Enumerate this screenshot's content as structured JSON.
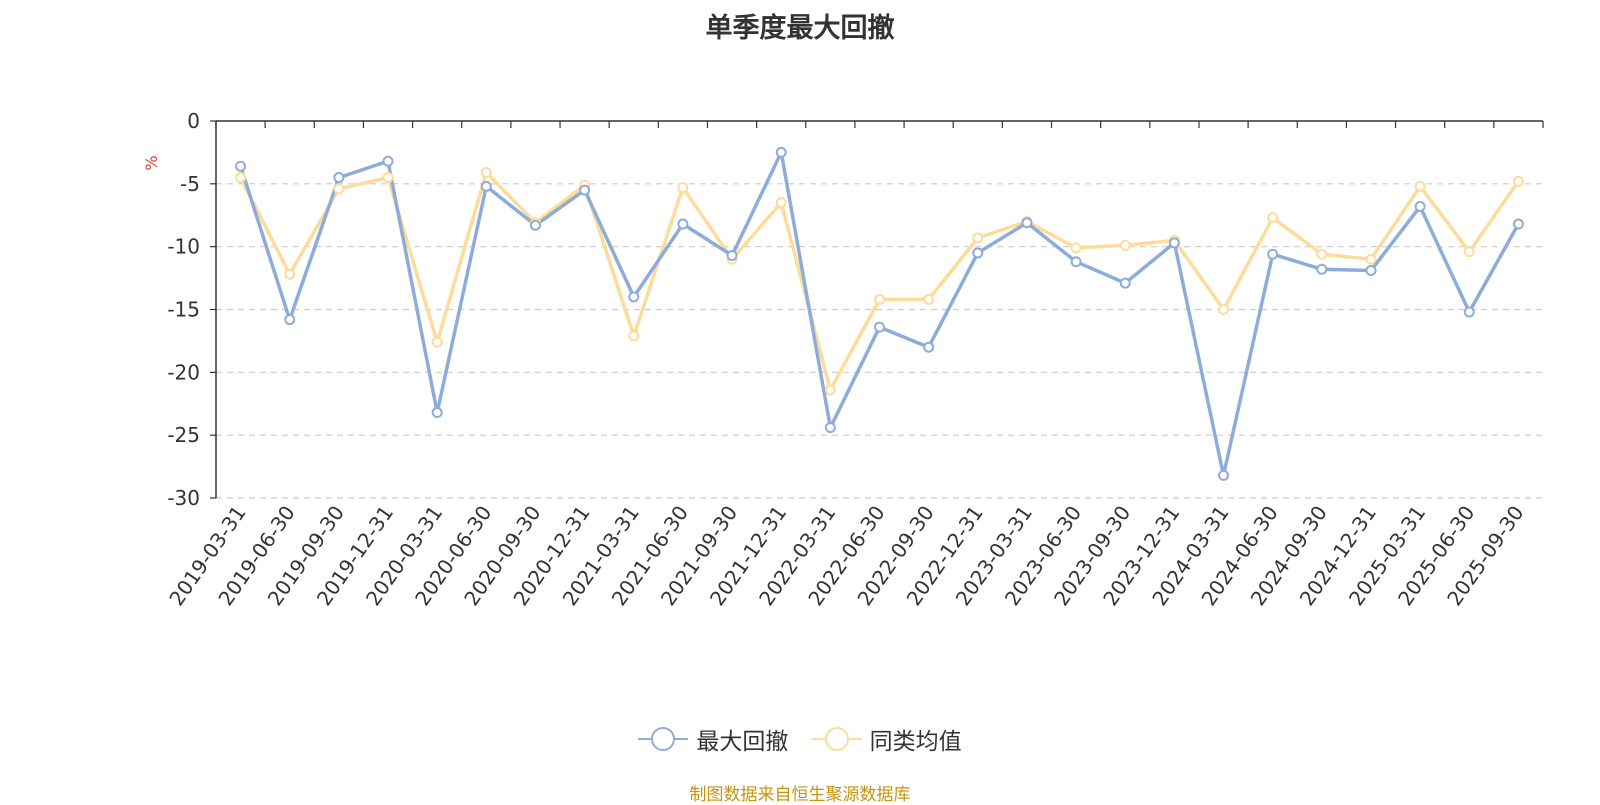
{
  "chart_data": {
    "type": "line",
    "title": "单季度最大回撤",
    "ylabel": "%",
    "ylim": [
      -30,
      0
    ],
    "yticks": [
      0,
      -5,
      -10,
      -15,
      -20,
      -25,
      -30
    ],
    "grid": true,
    "legend_position": "bottom",
    "categories": [
      "2019-03-31",
      "2019-06-30",
      "2019-09-30",
      "2019-12-31",
      "2020-03-31",
      "2020-06-30",
      "2020-09-30",
      "2020-12-31",
      "2021-03-31",
      "2021-06-30",
      "2021-09-30",
      "2021-12-31",
      "2022-03-31",
      "2022-06-30",
      "2022-09-30",
      "2022-12-31",
      "2023-03-31",
      "2023-06-30",
      "2023-09-30",
      "2023-12-31",
      "2024-03-31",
      "2024-06-30",
      "2024-09-30",
      "2024-12-31",
      "2025-03-31",
      "2025-06-30",
      "2025-09-30"
    ],
    "series": [
      {
        "name": "最大回撤",
        "color": "#8eacd9",
        "values": [
          -3.6,
          -15.8,
          -4.5,
          -3.2,
          -23.2,
          -5.2,
          -8.3,
          -5.5,
          -14.0,
          -8.2,
          -10.7,
          -2.5,
          -24.4,
          -16.4,
          -18.0,
          -10.5,
          -8.1,
          -11.2,
          -12.9,
          -9.7,
          -28.2,
          -10.6,
          -11.8,
          -11.9,
          -6.8,
          -15.2,
          -8.2
        ]
      },
      {
        "name": "同类均值",
        "color": "#fddc9b",
        "values": [
          -4.5,
          -12.2,
          -5.4,
          -4.5,
          -17.6,
          -4.1,
          -8.1,
          -5.1,
          -17.1,
          -5.3,
          -11.0,
          -6.5,
          -21.4,
          -14.2,
          -14.2,
          -9.3,
          -8.0,
          -10.1,
          -9.9,
          -9.5,
          -15.0,
          -7.7,
          -10.6,
          -11.0,
          -5.2,
          -10.4,
          -4.8
        ]
      }
    ]
  },
  "source_text": "制图数据来自恒生聚源数据库"
}
